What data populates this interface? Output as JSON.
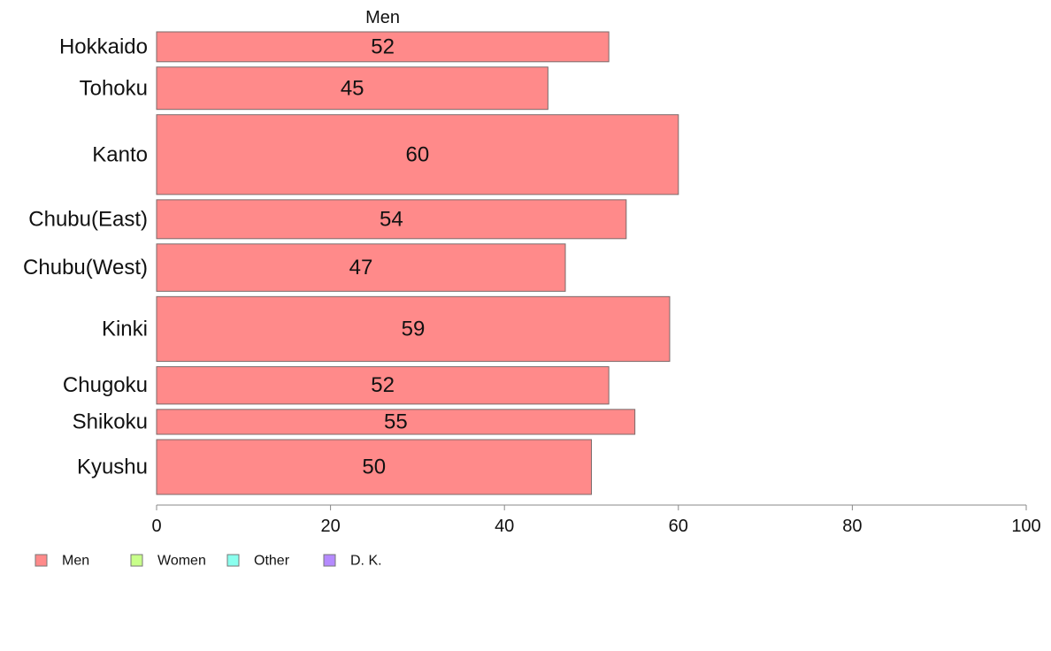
{
  "chart_data": {
    "type": "bar",
    "orientation": "horizontal",
    "title": "Men",
    "xlabel": "",
    "ylabel": "",
    "xlim": [
      0,
      100
    ],
    "xticks": [
      0,
      20,
      40,
      60,
      80,
      100
    ],
    "grid": false,
    "legend_position": "bottom-left",
    "categories": [
      "Hokkaido",
      "Tohoku",
      "Kanto",
      "Chubu(East)",
      "Chubu(West)",
      "Kinki",
      "Chugoku",
      "Shikoku",
      "Kyushu"
    ],
    "bar_weights": [
      0.6,
      0.85,
      1.6,
      0.78,
      0.95,
      1.3,
      0.75,
      0.5,
      1.1
    ],
    "series": [
      {
        "name": "Men",
        "color": "#ff8a8a",
        "values": [
          52,
          45,
          60,
          54,
          47,
          59,
          52,
          55,
          50
        ]
      }
    ],
    "legend": [
      {
        "label": "Men",
        "color": "#ff8a8a"
      },
      {
        "label": "Women",
        "color": "#c8ff8a"
      },
      {
        "label": "Other",
        "color": "#8affee"
      },
      {
        "label": "D. K.",
        "color": "#b58aff"
      }
    ]
  }
}
